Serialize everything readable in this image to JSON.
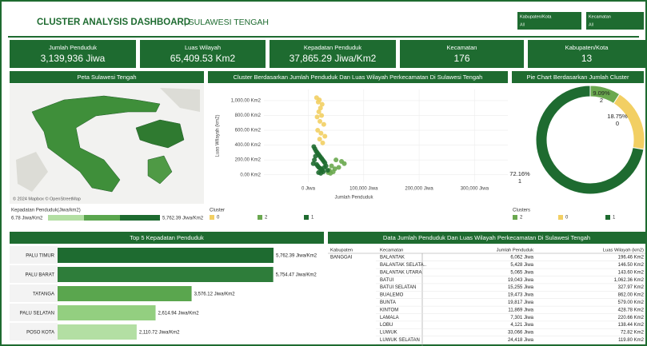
{
  "header": {
    "title": "CLUSTER ANALYSIS DASHBOARD",
    "subtitle": "| SULAWESI TENGAH"
  },
  "filters": [
    {
      "label": "Kabupaten/Kota",
      "value": "All"
    },
    {
      "label": "Kecamatan",
      "value": "All"
    }
  ],
  "kpis": [
    {
      "label": "Jumlah Penduduk",
      "value": "3,139,936 Jiwa"
    },
    {
      "label": "Luas Wilayah",
      "value": "65,409.53 Km2"
    },
    {
      "label": "Kepadatan Penduduk",
      "value": "37,865.29 Jiwa/Km2"
    },
    {
      "label": "Kecamatan",
      "value": "176"
    },
    {
      "label": "Kabupaten/Kota",
      "value": "13"
    }
  ],
  "map": {
    "title": "Peta Sulawesi Tengah",
    "credit": "© 2024 Mapbox © OpenStreetMap",
    "legend": {
      "title": "Kepadatan Penduduk(Jiwa/km2)",
      "min_label": "6.78 Jiwa/Km2",
      "max_label": "5,762.39 Jiwa/Km2"
    }
  },
  "chart_data": [
    {
      "type": "scatter",
      "title": "Cluster Berdasarkan Jumlah Penduduk Dan Luas Wilayah Perkecamatan Di Sulawesi Tengah",
      "x_label": "Jumlah Penduduk",
      "y_label": "Luas Wilayah (km2)",
      "legend_title": "Cluster",
      "xlim": [
        -80000,
        360000
      ],
      "ylim": [
        -100,
        1150
      ],
      "xticks": [
        {
          "value": 0,
          "label": "0 Jiwa"
        },
        {
          "value": 100000,
          "label": "100,000 Jiwa"
        },
        {
          "value": 200000,
          "label": "200,000 Jiwa"
        },
        {
          "value": 300000,
          "label": "300,000 Jiwa"
        }
      ],
      "yticks": [
        {
          "value": 0,
          "label": "0.00 Km2"
        },
        {
          "value": 200,
          "label": "200.00 Km2"
        },
        {
          "value": 400,
          "label": "400.00 Km2"
        },
        {
          "value": 600,
          "label": "600.00 Km2"
        },
        {
          "value": 800,
          "label": "800.00 Km2"
        },
        {
          "value": 1000,
          "label": "1,000.00 Km2"
        }
      ],
      "grid": true,
      "series": [
        {
          "name": "0",
          "color": "#f2cf63",
          "x": [
            15000,
            18000,
            20000,
            22000,
            25000,
            19000,
            16000,
            21000,
            24000,
            28000,
            17000,
            23000,
            30000,
            20500,
            26000
          ],
          "values": [
            1040,
            980,
            1010,
            900,
            950,
            850,
            780,
            720,
            800,
            680,
            600,
            560,
            520,
            480,
            430
          ]
        },
        {
          "name": "2",
          "color": "#6aa84f",
          "x": [
            38000,
            42000,
            45000,
            50000,
            55000,
            60000,
            40000,
            48000,
            65000,
            36000
          ],
          "values": [
            60,
            120,
            40,
            200,
            100,
            180,
            20,
            80,
            150,
            30
          ]
        },
        {
          "name": "1",
          "color": "#1e6b30",
          "x": [
            10000,
            12000,
            14000,
            16000,
            18000,
            20000,
            22000,
            24000,
            26000,
            28000,
            30000,
            15000,
            17000,
            19000,
            21000,
            23000,
            25000,
            27000,
            13000,
            11000,
            32000,
            35000,
            18500,
            22500,
            29000,
            9000
          ],
          "values": [
            380,
            350,
            320,
            300,
            280,
            260,
            240,
            220,
            200,
            180,
            160,
            140,
            120,
            100,
            90,
            80,
            60,
            40,
            250,
            200,
            120,
            60,
            30,
            20,
            100,
            150
          ]
        }
      ]
    },
    {
      "type": "pie",
      "title": "Pie Chart Berdasarkan Jumlah Cluster",
      "legend_title": "Clusters",
      "categories": [
        "2",
        "0",
        "1"
      ],
      "values": [
        9.09,
        18.75,
        72.16
      ],
      "value_labels": [
        "9.09%",
        "18.75%",
        "72.16%"
      ],
      "colors": [
        "#6aa84f",
        "#f2cf63",
        "#1e6b30"
      ]
    },
    {
      "type": "hbar",
      "title": "Top 5 Kepadatan Penduduk",
      "categories": [
        "PALU TIMUR",
        "PALU BARAT",
        "TATANGA",
        "PALU SELATAN",
        "POSO KOTA"
      ],
      "values": [
        5762.39,
        5754.47,
        3576.12,
        2614.94,
        2110.72
      ],
      "value_labels": [
        "5,762.39 Jiwa/Km2",
        "5,754.47 Jiwa/Km2",
        "3,576.12 Jiwa/Km2",
        "2,614.94 Jiwa/Km2",
        "2,110.72 Jiwa/Km2"
      ],
      "colors": [
        "#1e6b30",
        "#2e7d3a",
        "#5aa64e",
        "#93cf80",
        "#b3dfa3"
      ],
      "xlim": [
        0,
        7000
      ]
    }
  ],
  "table": {
    "title": "Data Jumlah Penduduk Dan Luas Wilayah Perkecamatan Di Sulawesi Tengah",
    "columns": [
      "Kabupaten",
      "Kecamatan",
      "Jumlah Penduduk",
      "Luas Wilayah (km2)"
    ],
    "groups": [
      {
        "kabupaten": "BANGGAI",
        "rows": [
          [
            "BALANTAK",
            "6,062 Jiwa",
            "196.46 Km2"
          ],
          [
            "BALANTAK SELATA..",
            "5,428 Jiwa",
            "146.50 Km2"
          ],
          [
            "BALANTAK UTARA",
            "5,065 Jiwa",
            "143.60 Km2"
          ],
          [
            "BATUI",
            "19,043 Jiwa",
            "1,062.36 Km2"
          ],
          [
            "BATUI SELATAN",
            "15,255 Jiwa",
            "327.97 Km2"
          ],
          [
            "BUALEMO",
            "19,473 Jiwa",
            "862.00 Km2"
          ],
          [
            "BUNTA",
            "19,817 Jiwa",
            "579.00 Km2"
          ],
          [
            "KINTOM",
            "11,869 Jiwa",
            "428.78 Km2"
          ],
          [
            "LAMALA",
            "7,301 Jiwa",
            "220.66 Km2"
          ],
          [
            "LOBU",
            "4,121 Jiwa",
            "138.44 Km2"
          ],
          [
            "LUWUK",
            "33,066 Jiwa",
            "72.82 Km2"
          ],
          [
            "LUWUK SELATAN",
            "24,418 Jiwa",
            "119.80 Km2"
          ]
        ]
      }
    ]
  }
}
